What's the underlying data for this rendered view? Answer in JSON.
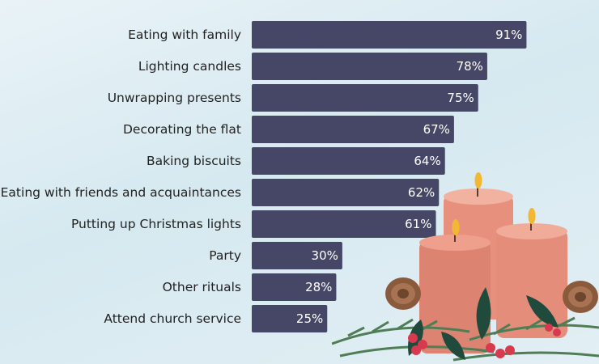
{
  "chart_data": {
    "type": "bar",
    "orientation": "horizontal",
    "title": "",
    "xlabel": "",
    "ylabel": "",
    "xlim": [
      0,
      100
    ],
    "grid": false,
    "categories": [
      "Eating with family",
      "Lighting candles",
      "Unwrapping presents",
      "Decorating the flat",
      "Baking biscuits",
      "Eating with friends and acquaintances",
      "Putting up Christmas lights",
      "Party",
      "Other rituals",
      "Attend church service"
    ],
    "values": [
      91,
      78,
      75,
      67,
      64,
      62,
      61,
      30,
      28,
      25
    ],
    "value_labels": [
      "91%",
      "78%",
      "75%",
      "67%",
      "64%",
      "62%",
      "61%",
      "30%",
      "28%",
      "25%"
    ],
    "bar_color": "#464766"
  }
}
